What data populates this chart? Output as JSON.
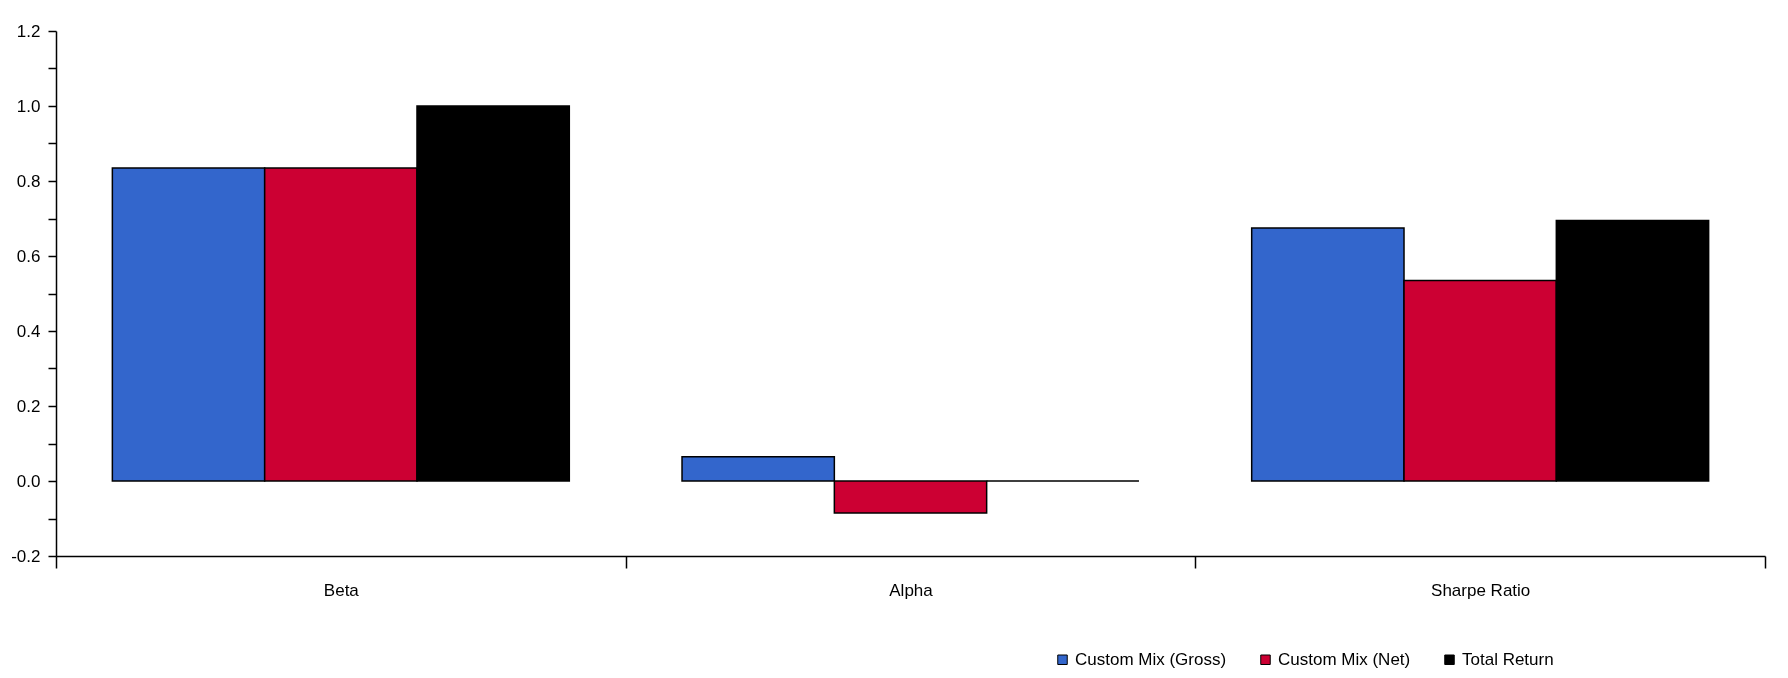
{
  "chart_data": {
    "type": "bar",
    "categories": [
      "Beta",
      "Alpha",
      "Sharpe Ratio"
    ],
    "series": [
      {
        "name": "Custom Mix (Gross)",
        "color": "#3366cc",
        "values": [
          0.835,
          0.065,
          0.675
        ]
      },
      {
        "name": "Custom Mix (Net)",
        "color": "#cc0033",
        "values": [
          0.835,
          -0.085,
          0.535
        ]
      },
      {
        "name": "Total Return",
        "color": "#000000",
        "values": [
          1.0,
          0.0,
          0.695
        ]
      }
    ],
    "ylim": [
      -0.2,
      1.2
    ],
    "yticks": [
      {
        "value": -0.2,
        "label": "-0.2"
      },
      {
        "value": -0.1,
        "label": null
      },
      {
        "value": 0,
        "label": "0.0"
      },
      {
        "value": 0.1,
        "label": null
      },
      {
        "value": 0.2,
        "label": "0.2"
      },
      {
        "value": 0.3,
        "label": null
      },
      {
        "value": 0.4,
        "label": "0.4"
      },
      {
        "value": 0.5,
        "label": null
      },
      {
        "value": 0.6,
        "label": "0.6"
      },
      {
        "value": 0.7,
        "label": null
      },
      {
        "value": 0.8,
        "label": "0.8"
      },
      {
        "value": 0.9,
        "label": null
      },
      {
        "value": 1.0,
        "label": "1.0"
      },
      {
        "value": 1.1,
        "label": null
      },
      {
        "value": 1.2,
        "label": "1.2"
      }
    ],
    "legend": "bottom right"
  }
}
